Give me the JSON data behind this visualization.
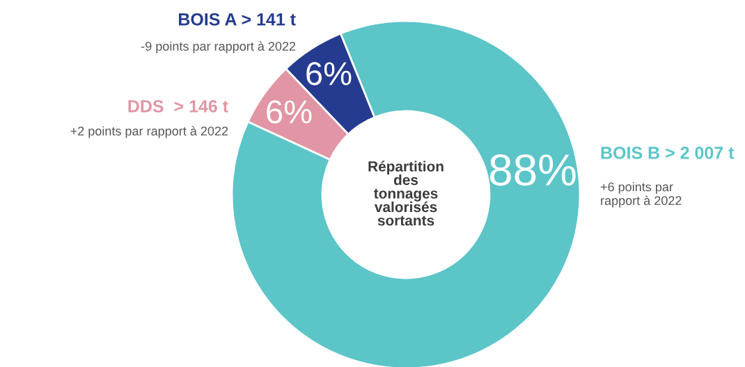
{
  "chart_data": {
    "type": "donut",
    "title": "Répartition\ndes\ntonnages\nvalorisés\nsortants",
    "categories": [
      "BOIS A > 141 t",
      "DDS  > 146 t",
      "BOIS B > 2 007 t"
    ],
    "values": [
      6,
      6,
      88
    ],
    "colors": [
      "#253b8f",
      "#e295a4",
      "#5bc5c8"
    ],
    "value_labels": [
      "6%",
      "6%",
      "88%"
    ],
    "annotations": [
      "-9 points par rapport à 2022",
      "+2 points par rapport à 2022",
      "+6 points par\nrapport à 2022"
    ]
  }
}
